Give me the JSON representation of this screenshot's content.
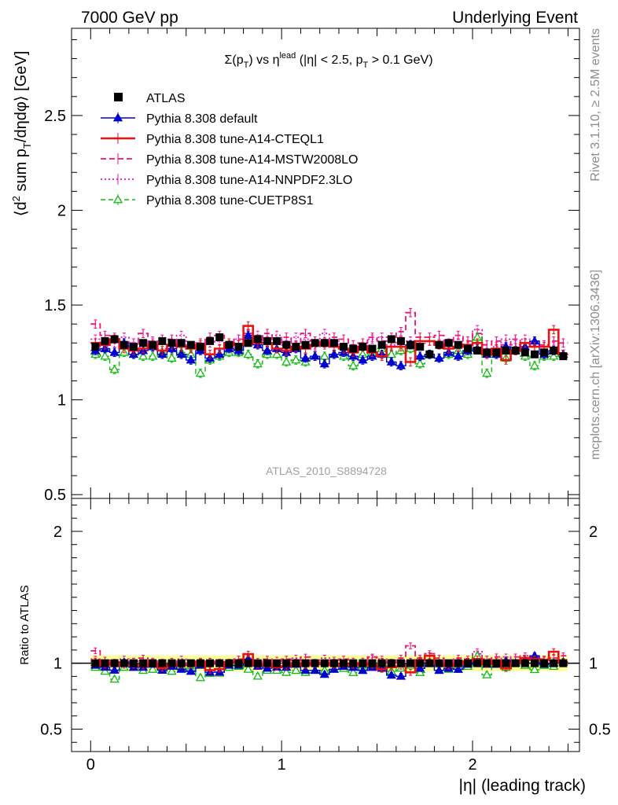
{
  "header": {
    "left": "7000 GeV pp",
    "right": "Underlying Event"
  },
  "side": {
    "top": "Rivet 3.1.10, ≥ 2.5M events",
    "bottom": "mcplots.cern.ch [arXiv:1306.3436]"
  },
  "plot": {
    "title": {
      "main": "Σ(p",
      "sub": "T",
      "mid": ") vs η",
      "sup": "lead",
      "rest": " (|η| < 2.5, p",
      "sub2": "T",
      "end": " > 0.1 GeV)"
    },
    "ylabel": "⟨d² sum p_T/dηdφ⟩ [GeV]",
    "xlabel": "|η| (leading track)",
    "ratio_ylabel": "Ratio to ATLAS",
    "analysis_id": "ATLAS_2010_S8894728"
  },
  "legend": [
    {
      "name": "ATLAS",
      "color": "#000000",
      "style": "data"
    },
    {
      "name": "Pythia 8.308 default",
      "color": "#0000cc",
      "style": "solid-triangle"
    },
    {
      "name": "Pythia 8.308 tune-A14-CTEQL1",
      "color": "#ee1111",
      "style": "solid-thick"
    },
    {
      "name": "Pythia 8.308 tune-A14-MSTW2008LO",
      "color": "#ee1177",
      "style": "dashed"
    },
    {
      "name": "Pythia 8.308 tune-A14-NNPDF2.3LO",
      "color": "#ee11bb",
      "style": "dotted"
    },
    {
      "name": "Pythia 8.308 tune-CUETP8S1",
      "color": "#11bb11",
      "style": "dashed-open-triangle"
    }
  ],
  "chart_data": [
    {
      "type": "line",
      "title": "Σ(p_T) vs η^lead (|η| < 2.5, p_T > 0.1 GeV)",
      "xlabel": "|η| (leading track)",
      "ylabel": "⟨d² sum p_T/dηdφ⟩ [GeV]",
      "xlim": [
        -0.1,
        2.56
      ],
      "ylim": [
        0.48,
        2.96
      ],
      "x_ticks": [
        0,
        1,
        2
      ],
      "y_ticks": [
        0.5,
        1,
        1.5,
        2,
        2.5
      ],
      "legend_position": "top-left",
      "x": [
        0.025,
        0.075,
        0.125,
        0.175,
        0.225,
        0.275,
        0.325,
        0.375,
        0.425,
        0.475,
        0.525,
        0.575,
        0.625,
        0.675,
        0.725,
        0.775,
        0.825,
        0.875,
        0.925,
        0.975,
        1.025,
        1.075,
        1.125,
        1.175,
        1.225,
        1.275,
        1.325,
        1.375,
        1.425,
        1.475,
        1.525,
        1.575,
        1.625,
        1.675,
        1.725,
        1.775,
        1.825,
        1.875,
        1.925,
        1.975,
        2.025,
        2.075,
        2.125,
        2.175,
        2.225,
        2.275,
        2.325,
        2.375,
        2.425,
        2.475
      ],
      "series": [
        {
          "name": "ATLAS",
          "values": [
            1.28,
            1.31,
            1.32,
            1.29,
            1.28,
            1.3,
            1.29,
            1.31,
            1.3,
            1.3,
            1.29,
            1.28,
            1.31,
            1.33,
            1.29,
            1.28,
            1.3,
            1.32,
            1.31,
            1.31,
            1.29,
            1.28,
            1.29,
            1.3,
            1.3,
            1.3,
            1.28,
            1.27,
            1.28,
            1.27,
            1.29,
            1.32,
            1.31,
            1.29,
            1.28,
            1.24,
            1.29,
            1.3,
            1.29,
            1.27,
            1.26,
            1.25,
            1.25,
            1.26,
            1.26,
            1.25,
            1.24,
            1.25,
            1.26,
            1.23
          ]
        },
        {
          "name": "Pythia 8.308 default",
          "values": [
            1.26,
            1.27,
            1.25,
            1.3,
            1.24,
            1.26,
            1.28,
            1.24,
            1.27,
            1.24,
            1.21,
            1.26,
            1.22,
            1.24,
            1.27,
            1.26,
            1.34,
            1.29,
            1.26,
            1.27,
            1.25,
            1.27,
            1.22,
            1.23,
            1.19,
            1.24,
            1.25,
            1.23,
            1.21,
            1.23,
            1.24,
            1.2,
            1.18,
            1.29,
            1.23,
            1.24,
            1.22,
            1.25,
            1.23,
            1.26,
            1.27,
            1.24,
            1.24,
            1.28,
            1.26,
            1.28,
            1.31,
            1.24,
            1.26,
            1.24
          ]
        },
        {
          "name": "Pythia 8.308 tune-A14-CTEQL1",
          "values": [
            1.3,
            1.29,
            1.32,
            1.27,
            1.26,
            1.27,
            1.29,
            1.26,
            1.29,
            1.28,
            1.27,
            1.29,
            1.24,
            1.27,
            1.3,
            1.29,
            1.39,
            1.3,
            1.3,
            1.27,
            1.26,
            1.28,
            1.27,
            1.29,
            1.3,
            1.28,
            1.27,
            1.25,
            1.28,
            1.25,
            1.23,
            1.28,
            1.28,
            1.2,
            1.31,
            1.31,
            1.29,
            1.27,
            1.28,
            1.29,
            1.3,
            1.24,
            1.27,
            1.21,
            1.26,
            1.3,
            1.28,
            1.28,
            1.37,
            1.24
          ]
        },
        {
          "name": "Pythia 8.308 tune-A14-MSTW2008LO",
          "values": [
            1.4,
            1.34,
            1.33,
            1.27,
            1.3,
            1.35,
            1.3,
            1.32,
            1.32,
            1.28,
            1.27,
            1.3,
            1.33,
            1.34,
            1.28,
            1.32,
            1.35,
            1.32,
            1.35,
            1.3,
            1.33,
            1.29,
            1.35,
            1.31,
            1.29,
            1.33,
            1.32,
            1.29,
            1.3,
            1.33,
            1.31,
            1.33,
            1.36,
            1.46,
            1.33,
            1.33,
            1.34,
            1.29,
            1.34,
            1.31,
            1.35,
            1.29,
            1.31,
            1.29,
            1.32,
            1.28,
            1.31,
            1.29,
            1.31,
            1.3
          ]
        },
        {
          "name": "Pythia 8.308 tune-A14-NNPDF2.3LO",
          "values": [
            1.32,
            1.28,
            1.3,
            1.33,
            1.3,
            1.28,
            1.31,
            1.27,
            1.26,
            1.34,
            1.28,
            1.28,
            1.3,
            1.31,
            1.29,
            1.32,
            1.31,
            1.34,
            1.31,
            1.34,
            1.29,
            1.33,
            1.32,
            1.28,
            1.35,
            1.31,
            1.27,
            1.26,
            1.28,
            1.32,
            1.33,
            1.29,
            1.31,
            1.31,
            1.29,
            1.31,
            1.29,
            1.3,
            1.3,
            1.28,
            1.37,
            1.25,
            1.28,
            1.32,
            1.29,
            1.32,
            1.3,
            1.28,
            1.28,
            1.24
          ]
        },
        {
          "name": "Pythia 8.308 tune-CUETP8S1",
          "values": [
            1.24,
            1.23,
            1.16,
            1.25,
            1.24,
            1.23,
            1.23,
            1.25,
            1.22,
            1.25,
            1.24,
            1.14,
            1.21,
            1.23,
            1.25,
            1.25,
            1.24,
            1.19,
            1.24,
            1.24,
            1.2,
            1.21,
            1.2,
            1.23,
            1.23,
            1.24,
            1.23,
            1.18,
            1.24,
            1.25,
            1.27,
            1.24,
            1.26,
            1.27,
            1.19,
            1.24,
            1.22,
            1.24,
            1.26,
            1.24,
            1.33,
            1.14,
            1.24,
            1.22,
            1.26,
            1.23,
            1.18,
            1.23,
            1.23,
            1.24
          ]
        }
      ]
    },
    {
      "type": "line",
      "title": "",
      "xlabel": "|η| (leading track)",
      "ylabel": "Ratio to ATLAS",
      "xlim": [
        -0.1,
        2.56
      ],
      "ylim": [
        0.33,
        2.25
      ],
      "x_ticks": [
        0,
        1,
        2
      ],
      "y_ticks": [
        0.5,
        1,
        2
      ],
      "note": "ratio of each prediction to ATLAS, computed from the main panel values"
    }
  ]
}
